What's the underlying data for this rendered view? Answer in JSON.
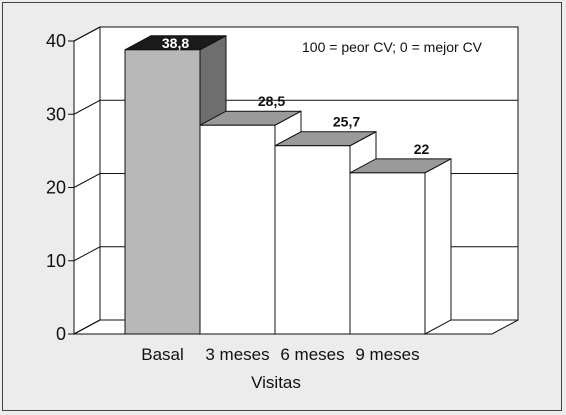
{
  "chart_data": {
    "type": "bar",
    "categories": [
      "Basal",
      "3 meses",
      "6 meses",
      "9 meses"
    ],
    "values": [
      38.8,
      28.5,
      25.7,
      22
    ],
    "value_labels": [
      "38,8",
      "28,5",
      "25,7",
      "22"
    ],
    "xlabel": "Visitas",
    "ylabel": "",
    "ylim": [
      0,
      40
    ],
    "yticks": [
      "0",
      "10",
      "20",
      "30",
      "40"
    ],
    "grid": true,
    "annotation": "100 = peor CV; 0 = mejor CV",
    "style": "3d-bar",
    "colors": {
      "highlight_front": "#b8b8b8",
      "highlight_top": "#1a1a1a",
      "highlight_side": "#6e6e6e",
      "bar_front": "#ffffff",
      "bar_top": "#9a9a9a",
      "bar_side": "#ffffff",
      "wall": "#ffffff",
      "stroke": "#111111"
    }
  }
}
